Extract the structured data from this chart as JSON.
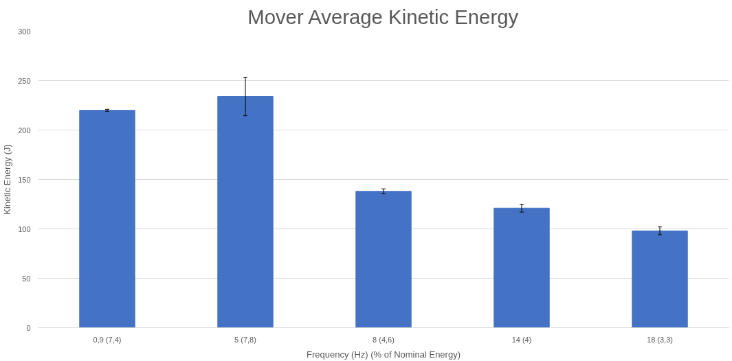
{
  "chart_data": {
    "type": "bar",
    "title": "Mover Average Kinetic Energy",
    "xlabel": "Frequency (Hz) (% of Nominal Energy)",
    "ylabel": "Kinetic Energy (J)",
    "categories": [
      "0,9 (7,4)",
      "5 (7,8)",
      "8 (4,6)",
      "14 (4)",
      "18 (3,3)"
    ],
    "values": [
      220,
      234,
      138,
      121,
      98
    ],
    "errors": [
      1,
      19.5,
      2.5,
      4,
      4
    ],
    "color": "#4472c4",
    "ylim": [
      0,
      300
    ],
    "yticks": [
      0,
      50,
      100,
      150,
      200,
      250,
      300
    ],
    "grid": "y"
  }
}
